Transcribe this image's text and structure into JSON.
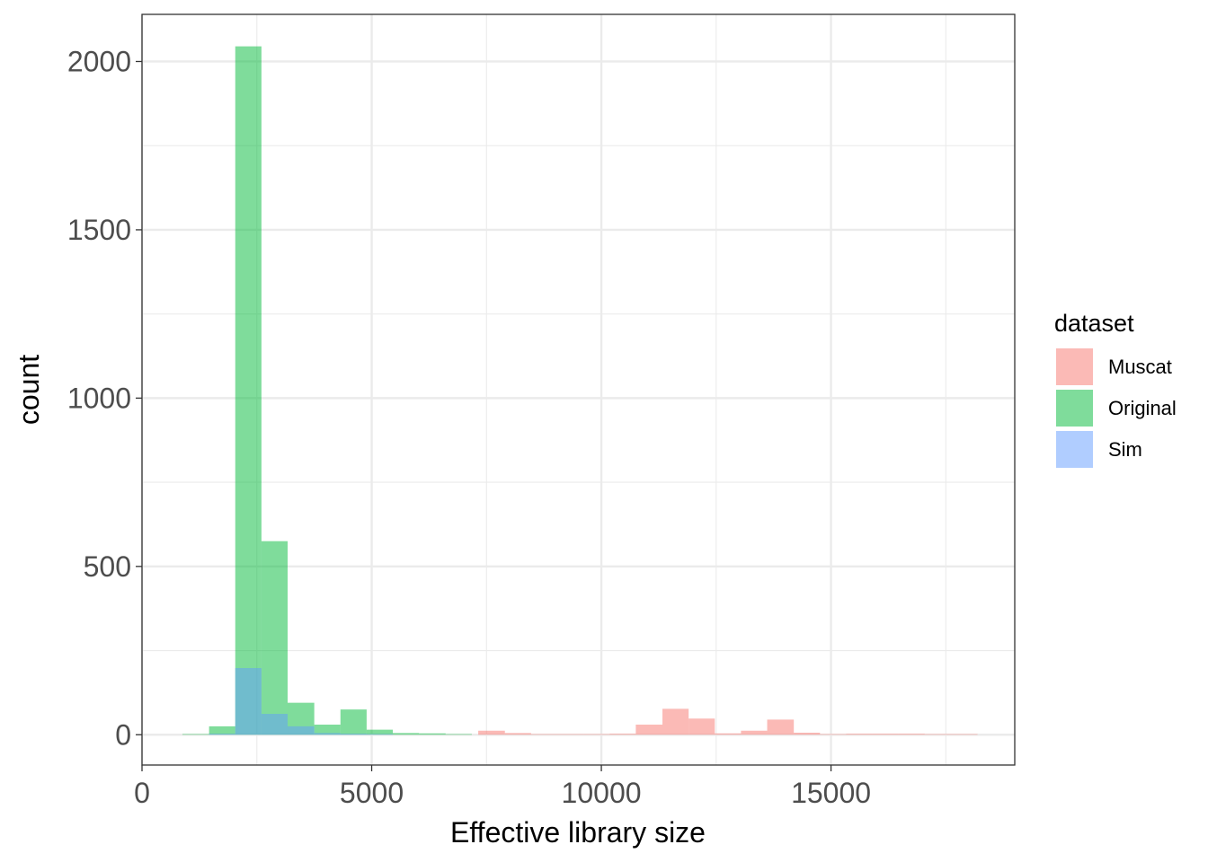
{
  "chart_data": {
    "type": "bar",
    "subtype": "histogram",
    "xlabel": "Effective library size",
    "ylabel": "count",
    "xlim": [
      0,
      19000
    ],
    "ylim": [
      -90,
      2140
    ],
    "x_ticks": [
      0,
      5000,
      10000,
      15000
    ],
    "x_tick_labels": [
      "0",
      "5000",
      "10000",
      "15000"
    ],
    "y_ticks": [
      0,
      500,
      1000,
      1500,
      2000
    ],
    "y_tick_labels": [
      "0",
      "500",
      "1000",
      "1500",
      "2000"
    ],
    "grid": true,
    "legend": {
      "title": "dataset",
      "position": "right"
    },
    "series": [
      {
        "name": "Muscat",
        "color": "#F8766D",
        "bins": [
          {
            "x0": 7320,
            "x1": 7900,
            "count": 12
          },
          {
            "x0": 7900,
            "x1": 8470,
            "count": 5
          },
          {
            "x0": 8470,
            "x1": 9040,
            "count": 2
          },
          {
            "x0": 9040,
            "x1": 9610,
            "count": 2
          },
          {
            "x0": 9610,
            "x1": 10180,
            "count": 2
          },
          {
            "x0": 10180,
            "x1": 10750,
            "count": 3
          },
          {
            "x0": 10750,
            "x1": 11330,
            "count": 30
          },
          {
            "x0": 11330,
            "x1": 11900,
            "count": 77
          },
          {
            "x0": 11900,
            "x1": 12470,
            "count": 48
          },
          {
            "x0": 12470,
            "x1": 13040,
            "count": 4
          },
          {
            "x0": 13040,
            "x1": 13610,
            "count": 12
          },
          {
            "x0": 13610,
            "x1": 14190,
            "count": 45
          },
          {
            "x0": 14190,
            "x1": 14760,
            "count": 6
          },
          {
            "x0": 14760,
            "x1": 15330,
            "count": 2
          },
          {
            "x0": 15330,
            "x1": 15900,
            "count": 3
          },
          {
            "x0": 15900,
            "x1": 16470,
            "count": 3
          },
          {
            "x0": 16470,
            "x1": 17040,
            "count": 3
          },
          {
            "x0": 17040,
            "x1": 17620,
            "count": 2
          },
          {
            "x0": 17620,
            "x1": 18190,
            "count": 2
          }
        ]
      },
      {
        "name": "Original",
        "color": "#00BA38",
        "bins": [
          {
            "x0": 880,
            "x1": 1460,
            "count": 2
          },
          {
            "x0": 1460,
            "x1": 2030,
            "count": 25
          },
          {
            "x0": 2030,
            "x1": 2600,
            "count": 2045
          },
          {
            "x0": 2600,
            "x1": 3170,
            "count": 575
          },
          {
            "x0": 3170,
            "x1": 3750,
            "count": 95
          },
          {
            "x0": 3750,
            "x1": 4320,
            "count": 30
          },
          {
            "x0": 4320,
            "x1": 4890,
            "count": 75
          },
          {
            "x0": 4890,
            "x1": 5460,
            "count": 15
          },
          {
            "x0": 5460,
            "x1": 6030,
            "count": 5
          },
          {
            "x0": 6030,
            "x1": 6610,
            "count": 4
          },
          {
            "x0": 6610,
            "x1": 7180,
            "count": 2
          }
        ]
      },
      {
        "name": "Sim",
        "color": "#619CFF",
        "bins": [
          {
            "x0": 1460,
            "x1": 2030,
            "count": 3
          },
          {
            "x0": 2030,
            "x1": 2600,
            "count": 198
          },
          {
            "x0": 2600,
            "x1": 3170,
            "count": 62
          },
          {
            "x0": 3170,
            "x1": 3750,
            "count": 25
          },
          {
            "x0": 3750,
            "x1": 4320,
            "count": 5
          },
          {
            "x0": 4320,
            "x1": 4890,
            "count": 3
          },
          {
            "x0": 4890,
            "x1": 5460,
            "count": 2
          }
        ]
      }
    ]
  }
}
